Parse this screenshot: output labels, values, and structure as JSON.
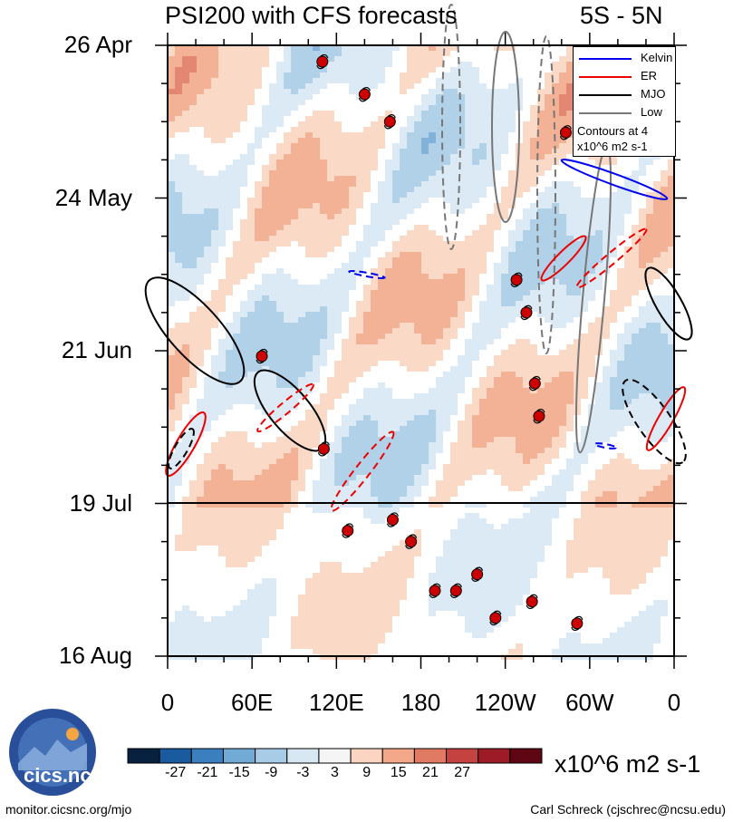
{
  "chart_data": {
    "type": "heatmap",
    "title": "PSI200 with CFS forecasts",
    "region": "5S - 5N",
    "y_tick_labels": [
      "26 Apr",
      "24 May",
      "21 Jun",
      "19 Jul",
      "16 Aug"
    ],
    "x_tick_labels": [
      "0",
      "60E",
      "120E",
      "180",
      "120W",
      "60W",
      "0"
    ],
    "x_range_lon": [
      0,
      360
    ],
    "y_range_days": [
      0,
      112
    ],
    "forecast_start_day": 84,
    "colorbar_ticks": [
      "-27",
      "-21",
      "-15",
      "-9",
      "-3",
      "3",
      "9",
      "15",
      "21",
      "27"
    ],
    "colorbar_colors": [
      "#08213f",
      "#1a5a9e",
      "#3b7fbf",
      "#72aad6",
      "#a9cce6",
      "#d7e8f3",
      "#f5f5f5",
      "#fbd5c1",
      "#f2a889",
      "#e07a63",
      "#c4423f",
      "#9c1b26",
      "#5e0614"
    ],
    "units": "x10^6 m2 s-1",
    "legend": [
      {
        "name": "Kelvin",
        "color": "#0000ee"
      },
      {
        "name": "ER",
        "color": "#ee0000"
      },
      {
        "name": "MJO",
        "color": "#000000"
      },
      {
        "name": "Low",
        "color": "#777777"
      }
    ],
    "legend_note": "Contours at 4 x10^6 m2 s-1",
    "tc_markers": [
      {
        "lon": 110,
        "day": 3
      },
      {
        "lon": 140,
        "day": 9
      },
      {
        "lon": 158,
        "day": 14
      },
      {
        "lon": 283,
        "day": 16
      },
      {
        "lon": 248,
        "day": 43
      },
      {
        "lon": 255,
        "day": 49
      },
      {
        "lon": 67,
        "day": 57
      },
      {
        "lon": 261,
        "day": 62
      },
      {
        "lon": 264,
        "day": 68
      },
      {
        "lon": 111,
        "day": 74
      },
      {
        "lon": 128,
        "day": 89
      },
      {
        "lon": 160,
        "day": 87
      },
      {
        "lon": 173,
        "day": 91
      },
      {
        "lon": 190,
        "day": 100
      },
      {
        "lon": 205,
        "day": 100
      },
      {
        "lon": 220,
        "day": 97
      },
      {
        "lon": 233,
        "day": 105
      },
      {
        "lon": 259,
        "day": 102
      },
      {
        "lon": 291,
        "day": 106
      }
    ]
  },
  "footer": {
    "left": "monitor.cicsnc.org/mjo",
    "right": "Carl Schreck (cjschrec@ncsu.edu)",
    "logo_text": "cics.nc"
  }
}
